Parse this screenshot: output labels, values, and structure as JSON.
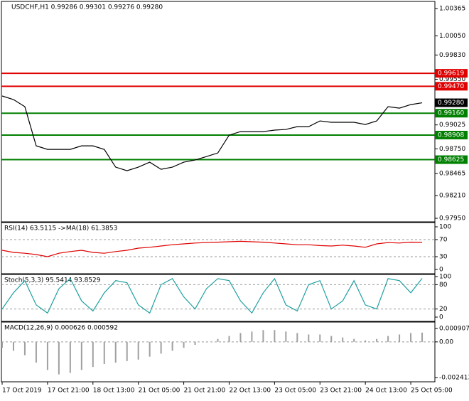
{
  "chart_data": [
    {
      "type": "line",
      "title": "USDCHF,H1  0.99286 0.99301 0.99276 0.99280",
      "x": [
        0,
        4,
        8,
        12,
        16,
        20,
        24,
        28,
        32,
        36,
        40,
        44,
        48,
        52,
        56,
        60,
        64,
        68,
        72,
        76,
        80,
        84,
        88,
        92,
        96,
        100,
        104,
        108,
        112,
        116,
        120,
        124,
        128,
        132,
        136,
        140,
        144,
        148
      ],
      "xlim": [
        0,
        152
      ],
      "xticks": [
        {
          "value": 0,
          "label": "17 Oct 2019"
        },
        {
          "value": 16,
          "label": "17 Oct 21:00"
        },
        {
          "value": 32,
          "label": "18 Oct 13:00"
        },
        {
          "value": 48,
          "label": "21 Oct 05:00"
        },
        {
          "value": 64,
          "label": "21 Oct 21:00"
        },
        {
          "value": 80,
          "label": "22 Oct 13:00"
        },
        {
          "value": 96,
          "label": "23 Oct 05:00"
        },
        {
          "value": 112,
          "label": "23 Oct 21:00"
        },
        {
          "value": 128,
          "label": "24 Oct 13:00"
        },
        {
          "value": 144,
          "label": "25 Oct 05:00"
        }
      ],
      "series": [
        {
          "name": "USDCHF",
          "color": "#000000",
          "values": [
            0.99358,
            0.99317,
            0.99235,
            0.98784,
            0.98743,
            0.98743,
            0.98743,
            0.98784,
            0.98784,
            0.98743,
            0.98539,
            0.98498,
            0.98539,
            0.98596,
            0.98514,
            0.98539,
            0.98596,
            0.98621,
            0.98661,
            0.98702,
            0.98907,
            0.98948,
            0.98948,
            0.98948,
            0.98965,
            0.98973,
            0.99005,
            0.99005,
            0.99071,
            0.99055,
            0.99055,
            0.99055,
            0.9903,
            0.99071,
            0.99235,
            0.99218,
            0.99259,
            0.9928
          ]
        }
      ],
      "ylim": [
        0.9795,
        1.00365
      ],
      "yticks": [
        1.00365,
        {
          "value": 1.0005,
          "label": "1.00050"
        },
        {
          "value": 0.9983,
          "label": "0.99830"
        },
        {
          "value": 0.9955,
          "label": "0.99550"
        },
        0.99025,
        {
          "value": 0.9875,
          "label": "0.98750"
        },
        0.98465,
        {
          "value": 0.9821,
          "label": "0.98210"
        },
        {
          "value": 0.9795,
          "label": "0.97950"
        }
      ],
      "hlines": [
        {
          "value": 0.99619,
          "color": "#e00000"
        },
        {
          "value": 0.9947,
          "label": "0.99470",
          "color": "#e00000"
        },
        {
          "value": 0.9916,
          "label": "0.99160",
          "color": "#008000"
        },
        {
          "value": 0.98908,
          "color": "#008000"
        },
        {
          "value": 0.98625,
          "color": "#008000"
        }
      ],
      "last_price": {
        "value": 0.9928,
        "label": "0.99280"
      }
    },
    {
      "type": "line",
      "title": "RSI(14) 63.5115 ->MA(18) 61.3853",
      "series": [
        {
          "name": "RSI",
          "color": "#e00000",
          "values": [
            45,
            40,
            38,
            35,
            30,
            38,
            42,
            45,
            40,
            38,
            42,
            45,
            50,
            52,
            55,
            58,
            60,
            62,
            63,
            64,
            65,
            66,
            65,
            64,
            62,
            60,
            58,
            58,
            56,
            55,
            57,
            55,
            52,
            60,
            63,
            62,
            64,
            63.5115
          ]
        }
      ],
      "ylim": [
        0,
        100
      ],
      "yticks": [
        100,
        70,
        30,
        0
      ]
    },
    {
      "type": "line",
      "title": "Stoch(5,3,3) 95.5414 93.8529",
      "series": [
        {
          "name": "Stoch",
          "color": "#20a0a0",
          "values": [
            20,
            60,
            90,
            30,
            10,
            70,
            95,
            40,
            15,
            60,
            90,
            85,
            30,
            10,
            80,
            95,
            50,
            20,
            70,
            95,
            90,
            40,
            10,
            60,
            95,
            30,
            15,
            80,
            90,
            20,
            40,
            90,
            30,
            20,
            95,
            90,
            60,
            95.5414
          ]
        }
      ],
      "ylim": [
        0,
        100
      ],
      "yticks": [
        100,
        80,
        20,
        0
      ]
    },
    {
      "type": "bar",
      "title": "MACD(12,26,9) 0.000626 0.000592",
      "series": [
        {
          "name": "MACD",
          "color": "#a0a0a0",
          "values": [
            -0.0004,
            -0.0006,
            -0.0009,
            -0.0014,
            -0.0019,
            -0.0022,
            -0.0021,
            -0.0019,
            -0.0017,
            -0.0015,
            -0.0014,
            -0.0013,
            -0.0012,
            -0.001,
            -0.0008,
            -0.0006,
            -0.0004,
            -0.0002,
            0,
            0.0002,
            0.0004,
            0.0006,
            0.0007,
            0.0008,
            0.0008,
            0.0007,
            0.0006,
            0.0005,
            0.0005,
            0.0004,
            0.0003,
            0.0002,
            0.0001,
            0.0002,
            0.0004,
            0.0005,
            0.0006,
            0.000626
          ]
        }
      ],
      "ylim": [
        -0.002413,
        0.000907
      ],
      "yticks": [
        0.000907,
        {
          "value": 0,
          "label": "0.00"
        },
        -0.002413
      ]
    }
  ]
}
